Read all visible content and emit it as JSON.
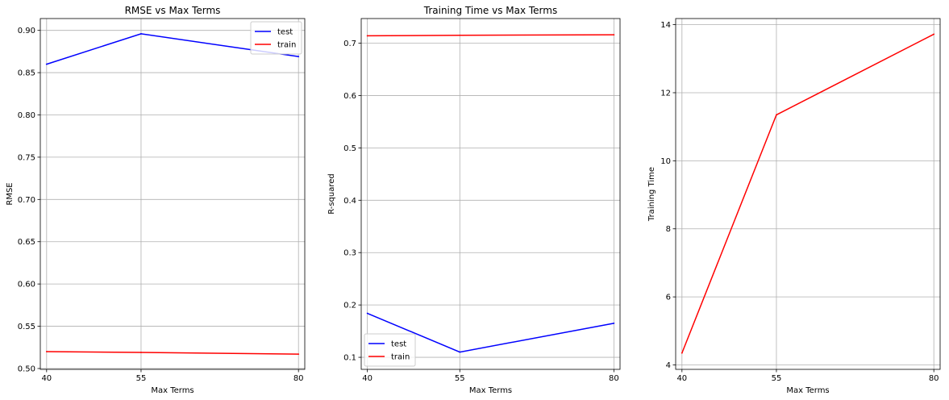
{
  "chart_data": [
    {
      "type": "line",
      "title": "RMSE vs Max Terms",
      "xlabel": "Max Terms",
      "ylabel": "RMSE",
      "x": [
        40,
        55,
        80
      ],
      "xticks": [
        "40",
        "55",
        "80"
      ],
      "xlim": [
        39,
        81
      ],
      "ylim": [
        0.499,
        0.914
      ],
      "yticks": [
        "0.50",
        "0.55",
        "0.60",
        "0.65",
        "0.70",
        "0.75",
        "0.80",
        "0.85",
        "0.90"
      ],
      "ytick_values": [
        0.5,
        0.55,
        0.6,
        0.65,
        0.7,
        0.75,
        0.8,
        0.85,
        0.9
      ],
      "grid": true,
      "legend_position": "upper right",
      "series": [
        {
          "name": "test",
          "color": "#0000ff",
          "values": [
            0.86,
            0.896,
            0.869
          ]
        },
        {
          "name": "train",
          "color": "#ff0000",
          "values": [
            0.52,
            0.519,
            0.517
          ]
        }
      ]
    },
    {
      "type": "line",
      "title": "Training Time vs Max Terms",
      "xlabel": "Max Terms",
      "ylabel": "R-squared",
      "x": [
        40,
        55,
        80
      ],
      "xticks": [
        "40",
        "55",
        "80"
      ],
      "xlim": [
        39,
        81
      ],
      "ylim": [
        0.077,
        0.747
      ],
      "yticks": [
        "0.1",
        "0.2",
        "0.3",
        "0.4",
        "0.5",
        "0.6",
        "0.7"
      ],
      "ytick_values": [
        0.1,
        0.2,
        0.3,
        0.4,
        0.5,
        0.6,
        0.7
      ],
      "grid": true,
      "legend_position": "lower left",
      "series": [
        {
          "name": "test",
          "color": "#0000ff",
          "values": [
            0.184,
            0.11,
            0.165
          ]
        },
        {
          "name": "train",
          "color": "#ff0000",
          "values": [
            0.714,
            0.715,
            0.716
          ]
        }
      ]
    },
    {
      "type": "line",
      "title": "",
      "xlabel": "Max Terms",
      "ylabel": "Training Time",
      "x": [
        40,
        55,
        80
      ],
      "xticks": [
        "40",
        "55",
        "80"
      ],
      "xlim": [
        39,
        81
      ],
      "ylim": [
        3.87,
        14.18
      ],
      "yticks": [
        "4",
        "6",
        "8",
        "10",
        "12",
        "14"
      ],
      "ytick_values": [
        4,
        6,
        8,
        10,
        12,
        14
      ],
      "grid": true,
      "legend_position": "none",
      "series": [
        {
          "color": "#ff0000",
          "values": [
            4.35,
            11.35,
            13.72
          ]
        }
      ]
    }
  ]
}
